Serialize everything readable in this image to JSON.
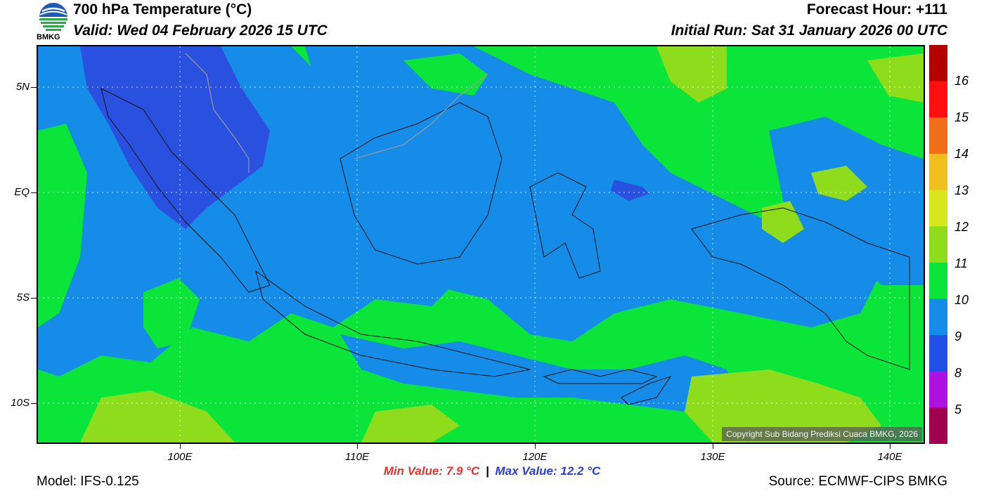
{
  "header": {
    "title": "700 hPa Temperature (°C)",
    "valid": "Valid: Wed 04 February 2026 15 UTC",
    "forecast_hour": "Forecast Hour: +111",
    "initial_run": "Initial Run: Sat 31 January 2026 00 UTC"
  },
  "logo": {
    "text": "BMKG"
  },
  "map": {
    "lat_labels": [
      "5N",
      "EQ",
      "5S",
      "10S"
    ],
    "lon_labels": [
      "100E",
      "110E",
      "120E",
      "130E",
      "140E"
    ],
    "copyright": "Copyright Sub Bidang Prediksi Cuaca BMKG, 2026"
  },
  "colorbar": {
    "labels": [
      "16",
      "15",
      "14",
      "13",
      "12",
      "11",
      "10",
      "9",
      "8",
      "5"
    ],
    "colors": [
      "#b40000",
      "#ff1010",
      "#f0701a",
      "#f0c020",
      "#d6e81c",
      "#8fdc1c",
      "#0be53a",
      "#148ce8",
      "#2050e6",
      "#b010e0",
      "#a00050"
    ]
  },
  "footer": {
    "min_value": "Min Value: 7.9 °C",
    "separator": "|",
    "max_value": "Max Value: 12.2 °C",
    "model": "Model: IFS-0.125",
    "source": "Source: ECMWF-CIPS BMKG"
  }
}
